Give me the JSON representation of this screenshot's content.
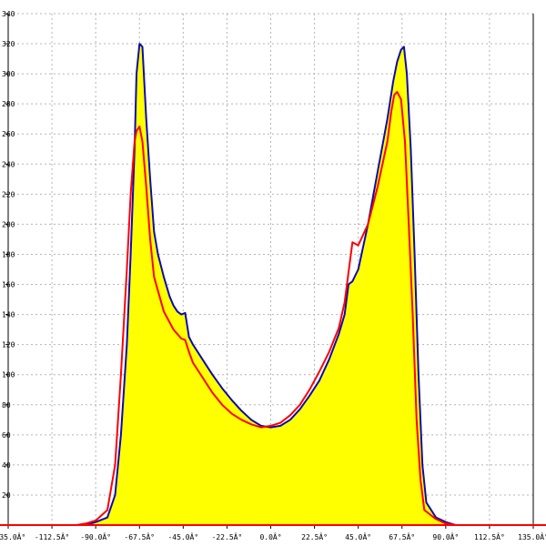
{
  "chart_data": {
    "type": "area",
    "title": "",
    "xlabel": "",
    "ylabel": "",
    "xlim": [
      -135,
      135
    ],
    "ylim": [
      0,
      340
    ],
    "grid": true,
    "x_ticks": [
      -135,
      -112.5,
      -90,
      -67.5,
      -45,
      -22.5,
      0,
      22.5,
      45,
      67.5,
      90,
      112.5,
      135
    ],
    "x_tick_labels": [
      "-135.0Â°",
      "-112.5Â°",
      "-90.0Â°",
      "-67.5Â°",
      "-45.0Â°",
      "-22.5Â°",
      "0.0Â°",
      "22.5Â°",
      "45.0Â°",
      "67.5Â°",
      "90.0Â°",
      "112.5Â°",
      "135.0Â°"
    ],
    "y_ticks": [
      20,
      40,
      60,
      80,
      100,
      120,
      140,
      160,
      180,
      200,
      220,
      240,
      260,
      280,
      300,
      320,
      340
    ],
    "y_tick_labels": [
      "20",
      "40",
      "60",
      "80",
      "100",
      "120",
      "140",
      "160",
      "180",
      "200",
      "220",
      "240",
      "260",
      "280",
      "300",
      "320",
      "340"
    ],
    "series": [
      {
        "color": "#0a0ab4",
        "fill": "#ffff00",
        "x": [
          -95,
          -90,
          -84,
          -80,
          -77,
          -74,
          -72,
          -70,
          -69,
          -67.5,
          -66,
          -64,
          -62,
          -60,
          -58,
          -55,
          -52,
          -50,
          -48,
          -46,
          -44,
          -42,
          -40,
          -35,
          -30,
          -25,
          -20,
          -15,
          -10,
          -5,
          0,
          5,
          10,
          15,
          20,
          25,
          30,
          35,
          38,
          40,
          42,
          45,
          50,
          55,
          60,
          63,
          65,
          67,
          68.5,
          70,
          72,
          74,
          76,
          78,
          80,
          85,
          90,
          95
        ],
        "y": [
          0,
          2,
          5,
          20,
          60,
          120,
          180,
          250,
          300,
          320,
          318,
          270,
          230,
          195,
          180,
          165,
          152,
          146,
          142,
          140,
          141,
          125,
          120,
          110,
          100,
          91,
          83,
          76,
          70,
          66,
          65,
          66,
          70,
          77,
          86,
          96,
          110,
          127,
          140,
          160,
          162,
          170,
          200,
          235,
          270,
          295,
          308,
          316,
          318,
          300,
          250,
          180,
          100,
          40,
          15,
          5,
          2,
          0
        ]
      },
      {
        "color": "#ff0000",
        "x": [
          -100,
          -95,
          -90,
          -84,
          -80,
          -77,
          -74,
          -72,
          -70,
          -69,
          -67.5,
          -66,
          -64,
          -62,
          -60,
          -55,
          -50,
          -46,
          -44,
          -42,
          -40,
          -35,
          -30,
          -25,
          -20,
          -15,
          -10,
          -5,
          0,
          5,
          10,
          15,
          20,
          25,
          30,
          35,
          38,
          40,
          42,
          45,
          50,
          55,
          60,
          62,
          63.5,
          65,
          67,
          69,
          71,
          73,
          75,
          77,
          79,
          85,
          90,
          95
        ],
        "y": [
          0,
          1,
          3,
          10,
          40,
          100,
          170,
          220,
          255,
          262,
          265,
          255,
          225,
          190,
          165,
          142,
          130,
          124,
          123,
          115,
          108,
          98,
          88,
          80,
          74,
          70,
          67,
          65,
          66,
          68,
          73,
          80,
          90,
          102,
          115,
          131,
          148,
          168,
          188,
          186,
          200,
          225,
          255,
          275,
          286,
          288,
          283,
          255,
          200,
          140,
          70,
          30,
          10,
          4,
          1,
          0
        ]
      }
    ]
  }
}
